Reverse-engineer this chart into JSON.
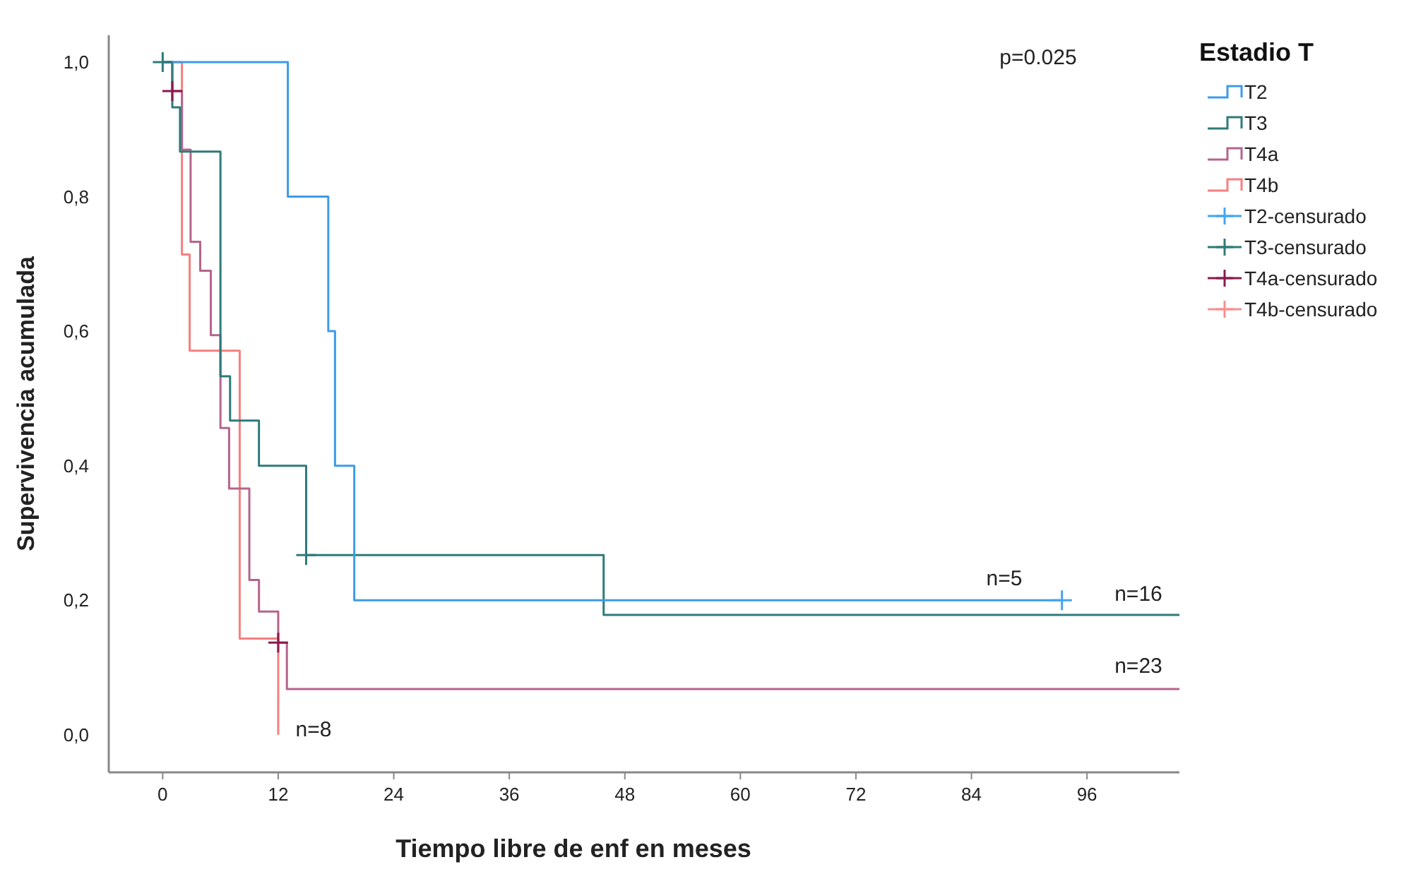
{
  "chart_data": {
    "type": "step",
    "xlabel": "Tiempo libre de enf en meses",
    "ylabel": "Supervivencia acumulada",
    "legend_title": "Estadio T",
    "legend": "right",
    "grid": false,
    "xlim": [
      -5.6,
      105.6
    ],
    "xticks": [
      0,
      12,
      24,
      36,
      48,
      60,
      72,
      84,
      96
    ],
    "ylim": [
      -0.056,
      1.04
    ],
    "yticks": [
      {
        "value": 0,
        "label": "0,0"
      },
      {
        "value": 0.2,
        "label": "0,2"
      },
      {
        "value": 0.4,
        "label": "0,4"
      },
      {
        "value": 0.6,
        "label": "0,6"
      },
      {
        "value": 0.8,
        "label": "0,8"
      },
      {
        "value": 1.0,
        "label": "1,0"
      }
    ],
    "series": [
      {
        "name": "T2",
        "color": "#3d9be9",
        "x": [
          0,
          13,
          17.2,
          17.9,
          19.9,
          93.4
        ],
        "values": [
          1,
          0.8,
          0.6,
          0.4,
          0.2,
          0.2
        ]
      },
      {
        "name": "T3",
        "color": "#2e7b78",
        "x": [
          0,
          1,
          1.8,
          6,
          7,
          10,
          14.9,
          45.8,
          105.6
        ],
        "values": [
          1,
          0.933,
          0.867,
          0.533,
          0.467,
          0.4,
          0.267,
          0.178,
          0.178
        ]
      },
      {
        "name": "T4a",
        "color": "#b5648c",
        "x": [
          0,
          1,
          2,
          2.9,
          3.9,
          5,
          6,
          6.9,
          9,
          10,
          12,
          12.9,
          105.6
        ],
        "values": [
          1,
          0.957,
          0.87,
          0.733,
          0.69,
          0.594,
          0.456,
          0.366,
          0.23,
          0.183,
          0.137,
          0.068,
          0.068
        ]
      },
      {
        "name": "T4b",
        "color": "#f77f7f",
        "x": [
          0,
          2,
          2.8,
          8,
          12
        ],
        "values": [
          1,
          0.714,
          0.571,
          0.143,
          0
        ]
      },
      {
        "name": "T2-censurado",
        "type": "scatter",
        "marker": "cross",
        "color": "#42a5f5",
        "x": [
          93.4
        ],
        "values": [
          0.2
        ]
      },
      {
        "name": "T3-censurado",
        "type": "scatter",
        "marker": "cross",
        "color": "#2e7b78",
        "x": [
          0,
          14.9
        ],
        "values": [
          1,
          0.267
        ]
      },
      {
        "name": "T4a-censurado",
        "type": "scatter",
        "marker": "cross",
        "color": "#8b1a4f",
        "x": [
          1,
          12
        ],
        "values": [
          0.957,
          0.137
        ]
      },
      {
        "name": "T4b-censurado",
        "type": "scatter",
        "marker": "cross",
        "color": "#f79090"
      }
    ],
    "annotations": [
      "p=0.025",
      "n=5",
      "n=16",
      "n=23",
      "n=8"
    ]
  }
}
